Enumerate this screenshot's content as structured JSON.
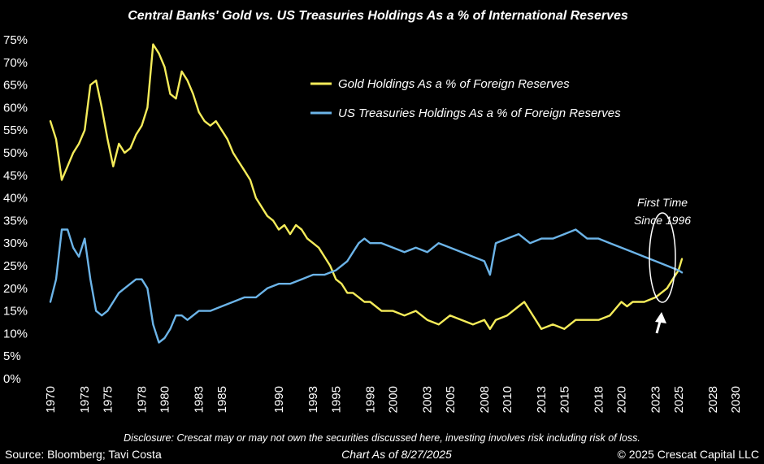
{
  "chart_data": {
    "type": "line",
    "title": "Central Banks' Gold vs. US Treasuries Holdings As a % of International Reserves",
    "xlabel": "",
    "ylabel": "",
    "xlim": [
      1970,
      2030
    ],
    "ylim": [
      0,
      75
    ],
    "x_ticks": [
      "1970",
      "1973",
      "1975",
      "1978",
      "1980",
      "1983",
      "1985",
      "1990",
      "1993",
      "1995",
      "1998",
      "2000",
      "2003",
      "2005",
      "2008",
      "2010",
      "2013",
      "2015",
      "2018",
      "2020",
      "2023",
      "2025",
      "2028",
      "2030"
    ],
    "y_ticks": [
      "0%",
      "5%",
      "10%",
      "15%",
      "20%",
      "25%",
      "30%",
      "35%",
      "40%",
      "45%",
      "50%",
      "55%",
      "60%",
      "65%",
      "70%",
      "75%"
    ],
    "grid": false,
    "legend_position": "top-right",
    "series": [
      {
        "name": "Gold Holdings As a % of Foreign Reserves",
        "color": "#F5EC5A",
        "x": [
          1970,
          1970.5,
          1971,
          1971.5,
          1972,
          1972.5,
          1973,
          1973.5,
          1974,
          1974.5,
          1975,
          1975.5,
          1976,
          1976.5,
          1977,
          1977.5,
          1978,
          1978.5,
          1979,
          1979.5,
          1980,
          1980.5,
          1981,
          1981.5,
          1982,
          1982.5,
          1983,
          1983.5,
          1984,
          1984.5,
          1985,
          1985.5,
          1986,
          1986.5,
          1987,
          1987.5,
          1988,
          1988.5,
          1989,
          1989.5,
          1990,
          1990.5,
          1991,
          1991.5,
          1992,
          1992.5,
          1993,
          1993.5,
          1994,
          1994.5,
          1995,
          1995.5,
          1996,
          1996.5,
          1997,
          1997.5,
          1998,
          1999,
          2000,
          2001,
          2002,
          2003,
          2004,
          2005,
          2006,
          2007,
          2008,
          2008.5,
          2009,
          2010,
          2011,
          2011.5,
          2012,
          2013,
          2014,
          2015,
          2016,
          2017,
          2018,
          2019,
          2020,
          2020.5,
          2021,
          2022,
          2023,
          2024,
          2024.5,
          2025,
          2025.3
        ],
        "values": [
          57,
          53,
          44,
          47,
          50,
          52,
          55,
          65,
          66,
          60,
          53,
          47,
          52,
          50,
          51,
          54,
          56,
          60,
          74,
          72,
          69,
          63,
          62,
          68,
          66,
          63,
          59,
          57,
          56,
          57,
          55,
          53,
          50,
          48,
          46,
          44,
          40,
          38,
          36,
          35,
          33,
          34,
          32,
          34,
          33,
          31,
          30,
          29,
          27,
          25,
          22,
          21,
          19,
          19,
          18,
          17,
          17,
          15,
          15,
          14,
          15,
          13,
          12,
          14,
          13,
          12,
          13,
          11,
          13,
          14,
          16,
          17,
          15,
          11,
          12,
          11,
          13,
          13,
          13,
          14,
          17,
          16,
          17,
          17,
          18,
          20,
          22,
          24,
          26.5
        ]
      },
      {
        "name": "US Treasuries Holdings As a % of Foreign Reserves",
        "color": "#6CB4E8",
        "x": [
          1970,
          1970.5,
          1971,
          1971.5,
          1972,
          1972.5,
          1973,
          1973.5,
          1974,
          1974.5,
          1975,
          1975.5,
          1976,
          1976.5,
          1977,
          1977.5,
          1978,
          1978.5,
          1979,
          1979.5,
          1980,
          1980.5,
          1981,
          1981.5,
          1982,
          1983,
          1984,
          1985,
          1986,
          1987,
          1988,
          1989,
          1990,
          1991,
          1992,
          1993,
          1994,
          1995,
          1996,
          1996.5,
          1997,
          1997.5,
          1998,
          1999,
          2000,
          2001,
          2002,
          2003,
          2004,
          2005,
          2006,
          2007,
          2008,
          2008.5,
          2009,
          2010,
          2011,
          2012,
          2013,
          2014,
          2015,
          2016,
          2017,
          2018,
          2019,
          2020,
          2021,
          2022,
          2023,
          2024,
          2025,
          2025.3
        ],
        "values": [
          17,
          22,
          33,
          33,
          29,
          27,
          31,
          22,
          15,
          14,
          15,
          17,
          19,
          20,
          21,
          22,
          22,
          20,
          12,
          8,
          9,
          11,
          14,
          14,
          13,
          15,
          15,
          16,
          17,
          18,
          18,
          20,
          21,
          21,
          22,
          23,
          23,
          24,
          26,
          28,
          30,
          31,
          30,
          30,
          29,
          28,
          29,
          28,
          30,
          29,
          28,
          27,
          26,
          23,
          30,
          31,
          32,
          30,
          31,
          31,
          32,
          33,
          31,
          31,
          30,
          29,
          28,
          27,
          26,
          25,
          24,
          23.5
        ]
      }
    ],
    "annotations": [
      {
        "text_line1": "First Time",
        "text_line2": "Since 1996",
        "x": 2025.2,
        "y": 25
      }
    ],
    "disclosure": "Disclosure: Crescat may or may not own the securities discussed here, investing involves risk including risk of loss.",
    "source": "Source: Bloomberg; Tavi Costa",
    "chart_as_of": "Chart As of 8/27/2025",
    "copyright": "© 2025 Crescat Capital LLC"
  }
}
